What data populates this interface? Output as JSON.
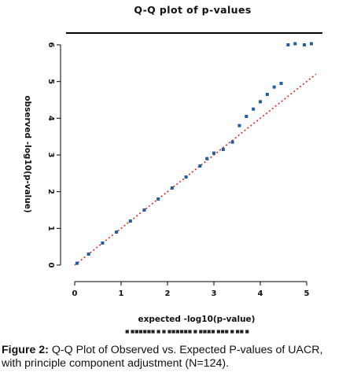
{
  "chart_data": {
    "type": "scatter",
    "title": "Q-Q plot of p-values",
    "xlabel": "expected -log10(p-value)",
    "ylabel": "observed -log10(p-value)",
    "subnote": "■ ■■■■■■ ■ ■ ■■■■■■ ■ ■■■■ ■■■ ■ ■■ ■",
    "xlim": [
      0,
      5.3
    ],
    "ylim": [
      0,
      6.3
    ],
    "x_ticks": [
      0,
      1,
      2,
      3,
      4,
      5
    ],
    "y_ticks": [
      0,
      1,
      2,
      3,
      4,
      5,
      6
    ],
    "grid": false,
    "legend": "none",
    "reference_line": {
      "name": "",
      "color": "#e8201c",
      "x": [
        0,
        5.2
      ],
      "y": [
        0,
        5.2
      ]
    },
    "series": [
      {
        "color": "#1e5fa6",
        "x": [
          0.05,
          0.3,
          0.6,
          0.9,
          1.2,
          1.5,
          1.8,
          2.1,
          2.4,
          2.7,
          2.85,
          3.0,
          3.2,
          3.4,
          3.55,
          3.7,
          3.85,
          4.0,
          4.15,
          4.3
        ],
        "y": [
          0.05,
          0.3,
          0.6,
          0.9,
          1.2,
          1.5,
          1.8,
          2.1,
          2.4,
          2.7,
          2.9,
          3.05,
          3.15,
          3.35,
          3.8,
          4.05,
          4.25,
          4.45,
          4.65,
          4.85
        ]
      },
      {
        "color": "#1e5fa6",
        "x": [
          4.45,
          4.6,
          4.75,
          4.95,
          5.1
        ],
        "y": [
          4.95,
          6.0,
          6.03,
          6.0,
          6.03
        ]
      }
    ]
  },
  "caption": {
    "label": "Figure 2:",
    "text": "Q-Q Plot of Observed vs. Expected P-values of UACR, with principle component adjustment (N=124)."
  }
}
